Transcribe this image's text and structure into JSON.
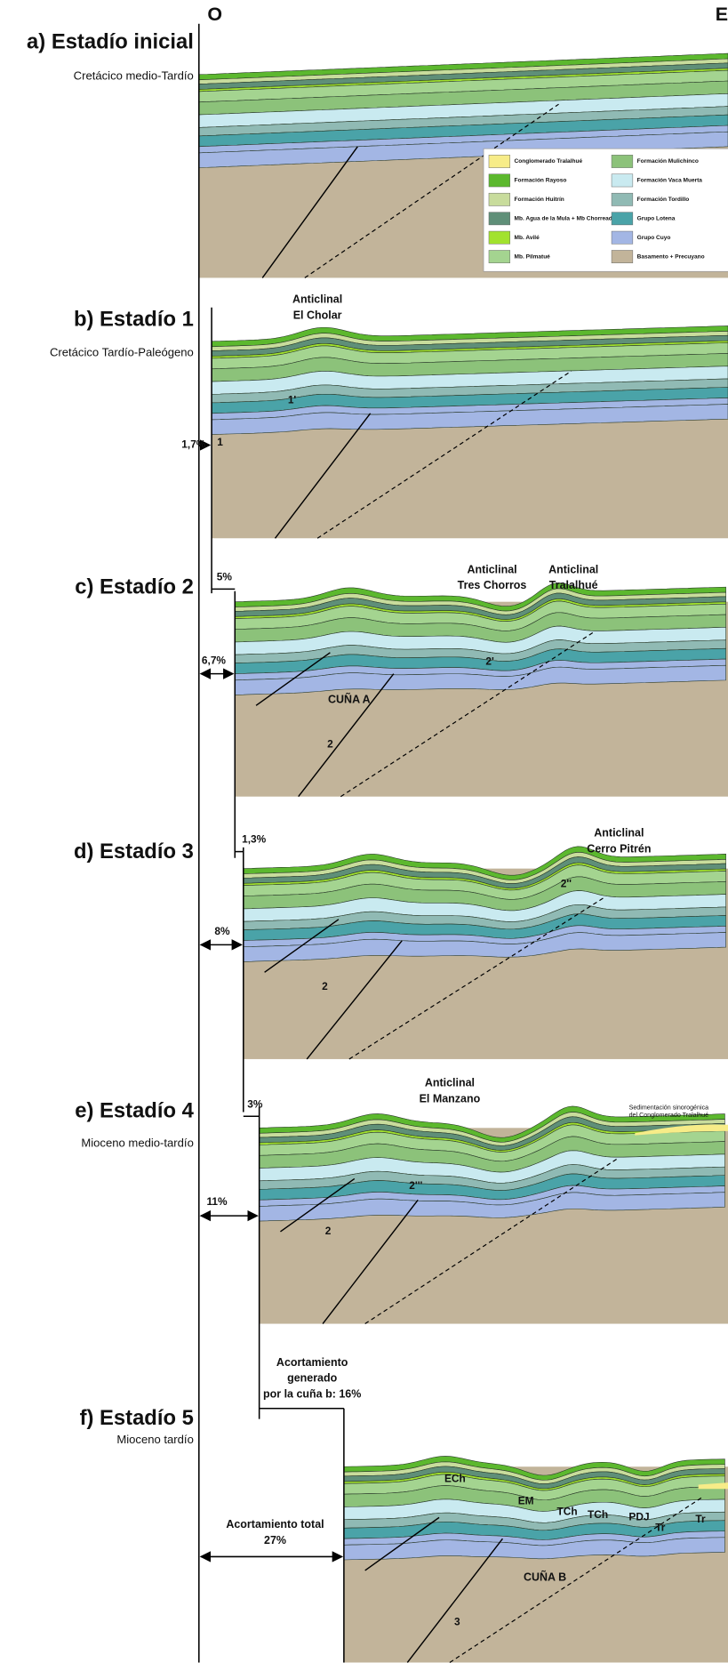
{
  "header": {
    "west": "O",
    "east": "E"
  },
  "legend": [
    {
      "label": "Conglomerado Tralalhué",
      "color": "#f7ec88"
    },
    {
      "label": "Formación Rayoso",
      "color": "#5cb82e"
    },
    {
      "label": "Formación Huitrín",
      "color": "#c8dc9c"
    },
    {
      "label": "Mb. Agua de la Mula + Mb Chorreado",
      "color": "#5f8f78"
    },
    {
      "label": "Mb. Avilé",
      "color": "#a2e22e"
    },
    {
      "label": "Mb. Pilmatué",
      "color": "#a4d490"
    },
    {
      "label": "Formación Mulichinco",
      "color": "#8cc27a"
    },
    {
      "label": "Formación Vaca Muerta",
      "color": "#c9eaf0"
    },
    {
      "label": "Formación Tordillo",
      "color": "#90bab4"
    },
    {
      "label": "Grupo Lotena",
      "color": "#4aa3a8"
    },
    {
      "label": "Grupo Cuyo",
      "color": "#a3b6e4"
    },
    {
      "label": "Basamento + Precuyano",
      "color": "#c2b49a"
    }
  ],
  "panels": [
    {
      "label": "a) Estadío inicial",
      "subtitle": "Cretácico medio-Tardío"
    },
    {
      "label": "b) Estadío 1",
      "subtitle": "Cretácico Tardío-Paleógeno",
      "annotations": [
        [
          "Anticlinal",
          "El Cholar"
        ],
        [
          "1,7%"
        ],
        [
          "1"
        ],
        [
          "1'"
        ]
      ]
    },
    {
      "label": "c) Estadío 2",
      "annotations": [
        [
          "5%"
        ],
        [
          "6,7%"
        ],
        [
          "Anticlinal",
          "Tres Chorros"
        ],
        [
          "Anticlinal",
          "Tralalhué"
        ],
        [
          "CUÑA A"
        ],
        [
          "2"
        ],
        [
          "2'"
        ]
      ]
    },
    {
      "label": "d) Estadío 3",
      "annotations": [
        [
          "1,3%"
        ],
        [
          "8%"
        ],
        [
          "Anticlinal",
          "Cerro Pitrén"
        ],
        [
          "2"
        ],
        [
          "2''"
        ]
      ]
    },
    {
      "label": "e) Estadío 4",
      "subtitle": "Mioceno medio-tardío",
      "annotations": [
        [
          "3%"
        ],
        [
          "11%"
        ],
        [
          "Anticlinal",
          "El Manzano"
        ],
        [
          "Sedimentación sinorogénica",
          "del Conglomerado Tralalhué"
        ],
        [
          "2"
        ],
        [
          "2'''"
        ]
      ]
    },
    {
      "label": "f) Estadío 5",
      "subtitle": "Mioceno tardío",
      "annotations": [
        [
          "Acortamiento",
          "generado",
          "por la cuña b: 16%"
        ],
        [
          "Acortamiento total",
          "27%"
        ],
        [
          "ECh"
        ],
        [
          "EM"
        ],
        [
          "TCh"
        ],
        [
          "TCh"
        ],
        [
          "PDJ"
        ],
        [
          "Tr"
        ],
        [
          "Tr"
        ],
        [
          "CUÑA B"
        ],
        [
          "3"
        ]
      ]
    }
  ]
}
